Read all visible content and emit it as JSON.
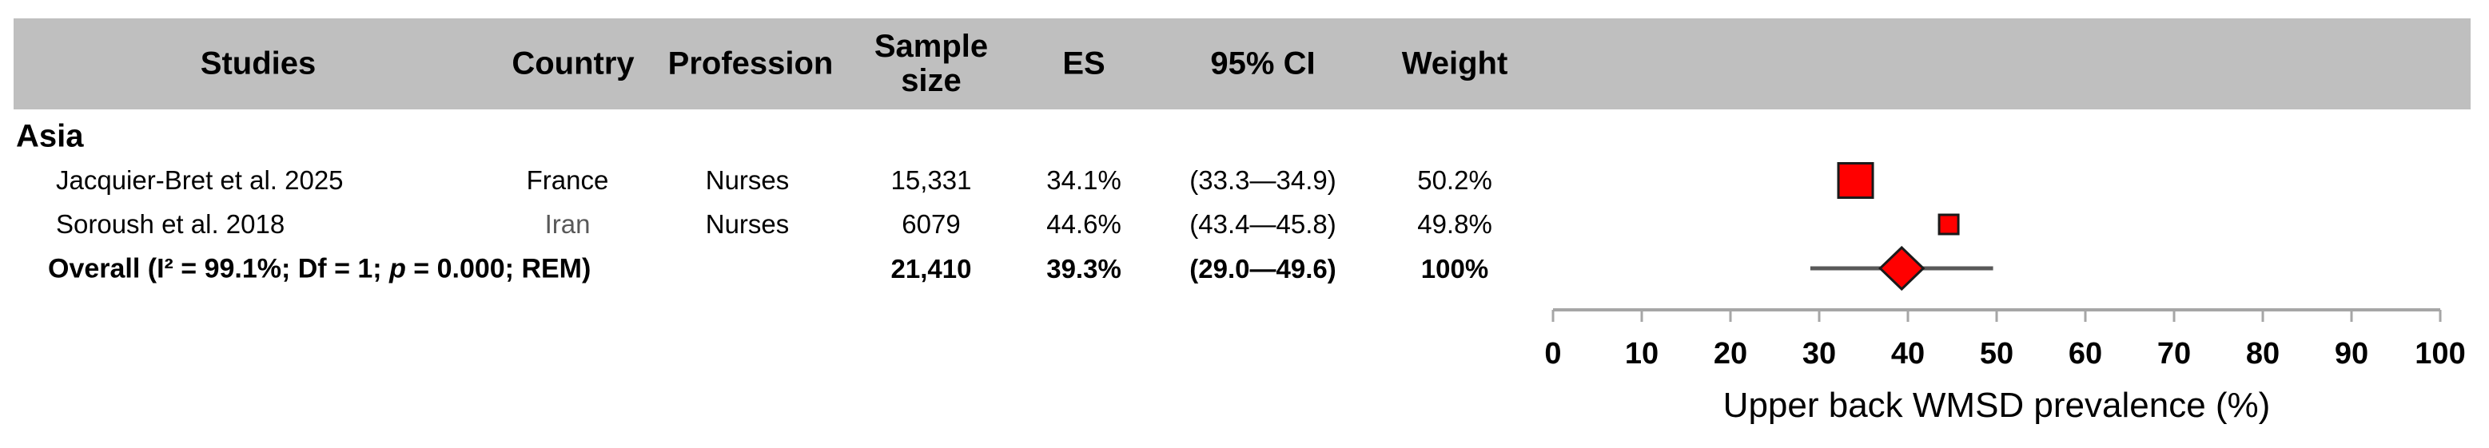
{
  "table": {
    "headers": {
      "studies": "Studies",
      "country": "Country",
      "profession": "Profession",
      "sample_size": "Sample size",
      "es": "ES",
      "ci": "95% CI",
      "weight": "Weight"
    },
    "group_label": "Asia",
    "rows": [
      {
        "study": "Jacquier-Bret et al. 2025",
        "country": "France",
        "profession": "Nurses",
        "sample_size": "15,331",
        "es": "34.1%",
        "ci": "(33.3—34.9)",
        "weight": "50.2%"
      },
      {
        "study": "Soroush et al. 2018",
        "country": "Iran",
        "profession": "Nurses",
        "sample_size": "6079",
        "es": "44.6%",
        "ci": "(43.4—45.8)",
        "weight": "49.8%"
      }
    ],
    "overall": {
      "label_prefix": "Overall (I² = 99.1%; Df = 1; ",
      "label_p": "p",
      "label_suffix": " = 0.000; REM)",
      "sample_size": "21,410",
      "es": "39.3%",
      "ci": "(29.0—49.6)",
      "weight": "100%"
    }
  },
  "chart_data": {
    "type": "forest",
    "xlabel": "Upper back WMSD prevalence (%)",
    "xlim": [
      0,
      100
    ],
    "xticks": [
      0,
      10,
      20,
      30,
      40,
      50,
      60,
      70,
      80,
      90,
      100
    ],
    "grid": false,
    "studies": [
      {
        "label": "Jacquier-Bret et al. 2025",
        "es": 34.1,
        "ci_low": 33.3,
        "ci_high": 34.9,
        "weight_pct": 50.2,
        "marker": "square",
        "marker_size": 43
      },
      {
        "label": "Soroush et al. 2018",
        "es": 44.6,
        "ci_low": 43.4,
        "ci_high": 45.8,
        "weight_pct": 49.8,
        "marker": "square",
        "marker_size": 24
      }
    ],
    "overall": {
      "label": "Overall",
      "es": 39.3,
      "ci_low": 29.0,
      "ci_high": 49.6,
      "weight_pct": 100,
      "marker": "diamond"
    },
    "colors": {
      "marker_fill": "#ff0000",
      "marker_border": "#1a1a1a",
      "ci_line": "#595959",
      "axis": "#a6a6a6",
      "header_bg": "#bfbfbf",
      "text": "#000000",
      "muted_text": "#595959"
    }
  }
}
